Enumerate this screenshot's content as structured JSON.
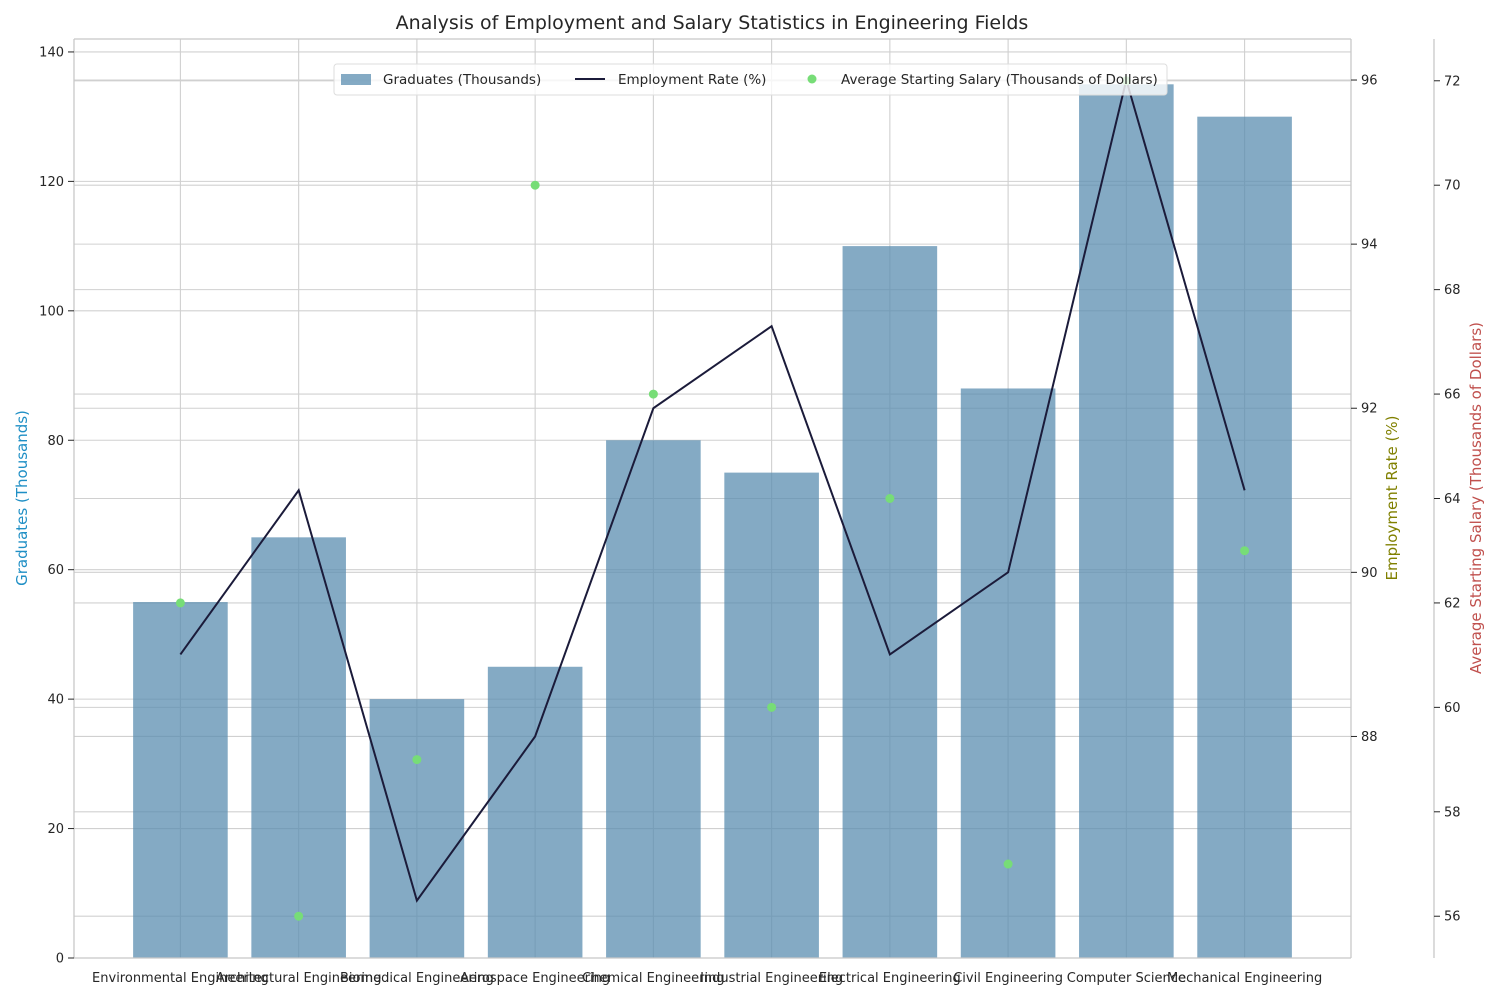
{
  "chart_data": {
    "type": "bar",
    "title": "Analysis of Employment and Salary Statistics in Engineering Fields",
    "categories": [
      "Environmental Engineering",
      "Architectural Engineering",
      "Biomedical Engineering",
      "Aerospace Engineering",
      "Chemical Engineering",
      "Industrial Engineering",
      "Electrical Engineering",
      "Civil Engineering",
      "Computer Science",
      "Mechanical Engineering"
    ],
    "series": [
      {
        "name": "Graduates (Thousands)",
        "kind": "bar",
        "axis": "left",
        "color": "#5b8db0",
        "values": [
          55,
          65,
          40,
          45,
          80,
          75,
          110,
          88,
          135,
          130
        ]
      },
      {
        "name": "Employment Rate (%)",
        "kind": "line",
        "axis": "right1",
        "color": "#1b1b3a",
        "values": [
          89,
          91,
          86,
          88,
          92,
          93,
          89,
          90,
          96,
          91
        ]
      },
      {
        "name": "Average Starting Salary (Thousands of Dollars)",
        "kind": "scatter",
        "axis": "right2",
        "color": "#77dd77",
        "values": [
          62,
          56,
          59,
          70,
          66,
          60,
          64,
          57,
          72,
          63
        ]
      }
    ],
    "y_left": {
      "label": "Graduates (Thousands)",
      "ylim": [
        0,
        142
      ],
      "ticks": [
        0,
        20,
        40,
        60,
        80,
        100,
        120,
        140
      ],
      "label_color": "#1f8fc5"
    },
    "y_right1": {
      "label": "Employment Rate (%)",
      "ylim": [
        85.3,
        96.5
      ],
      "ticks": [
        88,
        90,
        92,
        94,
        96
      ],
      "label_color": "#808000"
    },
    "y_right2": {
      "label": "Average Starting Salary (Thousands of Dollars)",
      "ylim": [
        55.2,
        72.8
      ],
      "ticks": [
        56,
        58,
        60,
        62,
        64,
        66,
        68,
        70,
        72
      ],
      "label_color": "#c0504d"
    },
    "grid": true,
    "legend": "top-center"
  }
}
